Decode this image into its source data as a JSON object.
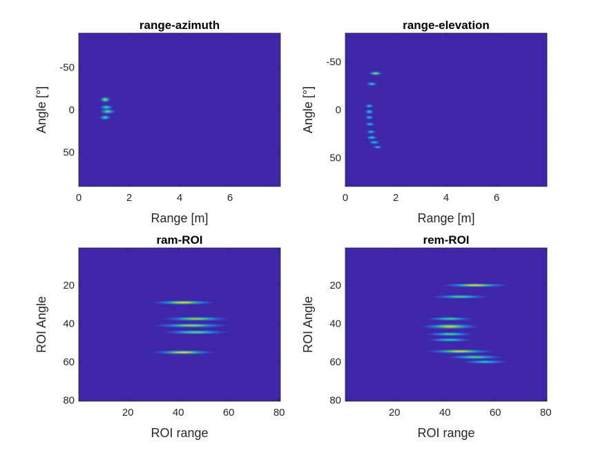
{
  "colors": {
    "background": "#3e26a8",
    "axis": "#262626",
    "colormap": "parula"
  },
  "chart_data": [
    {
      "type": "heatmap",
      "title": "range-azimuth",
      "xlabel": "Range [m]",
      "ylabel": "Angle [°]",
      "xlim": [
        0,
        8
      ],
      "ylim": [
        -90,
        90
      ],
      "y_reversed": true,
      "xticks": [
        {
          "v": 0,
          "label": "0"
        },
        {
          "v": 2,
          "label": "2"
        },
        {
          "v": 4,
          "label": "4"
        },
        {
          "v": 6,
          "label": "6"
        }
      ],
      "yticks": [
        {
          "v": -50,
          "label": "-50"
        },
        {
          "v": 0,
          "label": "0"
        },
        {
          "v": 50,
          "label": "50"
        }
      ],
      "blobs": [
        {
          "x": 1.05,
          "y": -12,
          "w": 0.25,
          "h": 4,
          "intensity": 0.75
        },
        {
          "x": 1.1,
          "y": -3,
          "w": 0.3,
          "h": 3.5,
          "intensity": 0.55
        },
        {
          "x": 1.15,
          "y": 2,
          "w": 0.35,
          "h": 3.5,
          "intensity": 0.65
        },
        {
          "x": 1.05,
          "y": 9,
          "w": 0.25,
          "h": 3.5,
          "intensity": 0.6
        }
      ]
    },
    {
      "type": "heatmap",
      "title": "range-elevation",
      "xlabel": "Range [m]",
      "ylabel": "Angle [°]",
      "xlim": [
        0,
        8
      ],
      "ylim": [
        -80,
        80
      ],
      "y_reversed": true,
      "xticks": [
        {
          "v": 0,
          "label": "0"
        },
        {
          "v": 2,
          "label": "2"
        },
        {
          "v": 4,
          "label": "4"
        },
        {
          "v": 6,
          "label": "6"
        }
      ],
      "yticks": [
        {
          "v": -50,
          "label": "-50"
        },
        {
          "v": 0,
          "label": "0"
        },
        {
          "v": 50,
          "label": "50"
        }
      ],
      "blobs": [
        {
          "x": 1.2,
          "y": -38,
          "w": 0.3,
          "h": 2.5,
          "intensity": 0.8
        },
        {
          "x": 1.05,
          "y": -27,
          "w": 0.25,
          "h": 2.5,
          "intensity": 0.5
        },
        {
          "x": 0.95,
          "y": -4,
          "w": 0.2,
          "h": 2.5,
          "intensity": 0.45
        },
        {
          "x": 0.95,
          "y": 2,
          "w": 0.2,
          "h": 3,
          "intensity": 0.5
        },
        {
          "x": 0.95,
          "y": 8,
          "w": 0.2,
          "h": 2.5,
          "intensity": 0.45
        },
        {
          "x": 0.98,
          "y": 15,
          "w": 0.22,
          "h": 2.5,
          "intensity": 0.4
        },
        {
          "x": 1.02,
          "y": 23,
          "w": 0.22,
          "h": 2.5,
          "intensity": 0.45
        },
        {
          "x": 1.05,
          "y": 29,
          "w": 0.25,
          "h": 2.5,
          "intensity": 0.5
        },
        {
          "x": 1.15,
          "y": 34,
          "w": 0.25,
          "h": 2.5,
          "intensity": 0.45
        },
        {
          "x": 1.28,
          "y": 39,
          "w": 0.22,
          "h": 2.2,
          "intensity": 0.4
        }
      ]
    },
    {
      "type": "heatmap",
      "title": "ram-ROI",
      "xlabel": "ROI range",
      "ylabel": "ROI Angle",
      "xlim": [
        0.5,
        80.5
      ],
      "ylim": [
        0.5,
        80.5
      ],
      "y_reversed": true,
      "xticks": [
        {
          "v": 20,
          "label": "20"
        },
        {
          "v": 40,
          "label": "40"
        },
        {
          "v": 60,
          "label": "60"
        },
        {
          "v": 80,
          "label": "80"
        }
      ],
      "yticks": [
        {
          "v": 20,
          "label": "20"
        },
        {
          "v": 40,
          "label": "40"
        },
        {
          "v": 60,
          "label": "60"
        },
        {
          "v": 80,
          "label": "80"
        }
      ],
      "blobs": [
        {
          "x": 42,
          "y": 29,
          "w": 13,
          "h": 1.3,
          "intensity": 0.9
        },
        {
          "x": 47,
          "y": 37.5,
          "w": 14,
          "h": 1.3,
          "intensity": 0.75
        },
        {
          "x": 45,
          "y": 41,
          "w": 16,
          "h": 1.3,
          "intensity": 0.75
        },
        {
          "x": 47,
          "y": 44.5,
          "w": 14,
          "h": 1.3,
          "intensity": 0.65
        },
        {
          "x": 42,
          "y": 55,
          "w": 13,
          "h": 1.3,
          "intensity": 0.9
        }
      ]
    },
    {
      "type": "heatmap",
      "title": "rem-ROI",
      "xlabel": "ROI range",
      "ylabel": "ROI Angle",
      "xlim": [
        0.5,
        80.5
      ],
      "ylim": [
        0.5,
        80.5
      ],
      "y_reversed": true,
      "xticks": [
        {
          "v": 20,
          "label": "20"
        },
        {
          "v": 40,
          "label": "40"
        },
        {
          "v": 60,
          "label": "60"
        },
        {
          "v": 80,
          "label": "80"
        }
      ],
      "yticks": [
        {
          "v": 20,
          "label": "20"
        },
        {
          "v": 40,
          "label": "40"
        },
        {
          "v": 60,
          "label": "60"
        },
        {
          "v": 80,
          "label": "80"
        }
      ],
      "blobs": [
        {
          "x": 52,
          "y": 20,
          "w": 14,
          "h": 1.2,
          "intensity": 0.9
        },
        {
          "x": 46,
          "y": 26,
          "w": 12,
          "h": 1.2,
          "intensity": 0.6
        },
        {
          "x": 42,
          "y": 37.5,
          "w": 10,
          "h": 1.2,
          "intensity": 0.55
        },
        {
          "x": 42,
          "y": 41.5,
          "w": 12,
          "h": 1.6,
          "intensity": 0.85
        },
        {
          "x": 42,
          "y": 45.5,
          "w": 10,
          "h": 1.2,
          "intensity": 0.6
        },
        {
          "x": 42,
          "y": 48.5,
          "w": 10,
          "h": 1.2,
          "intensity": 0.5
        },
        {
          "x": 46,
          "y": 54.5,
          "w": 14,
          "h": 1.3,
          "intensity": 0.85
        },
        {
          "x": 52,
          "y": 57.5,
          "w": 12,
          "h": 1.3,
          "intensity": 0.6
        },
        {
          "x": 56,
          "y": 60,
          "w": 10,
          "h": 1.2,
          "intensity": 0.45
        }
      ]
    }
  ]
}
